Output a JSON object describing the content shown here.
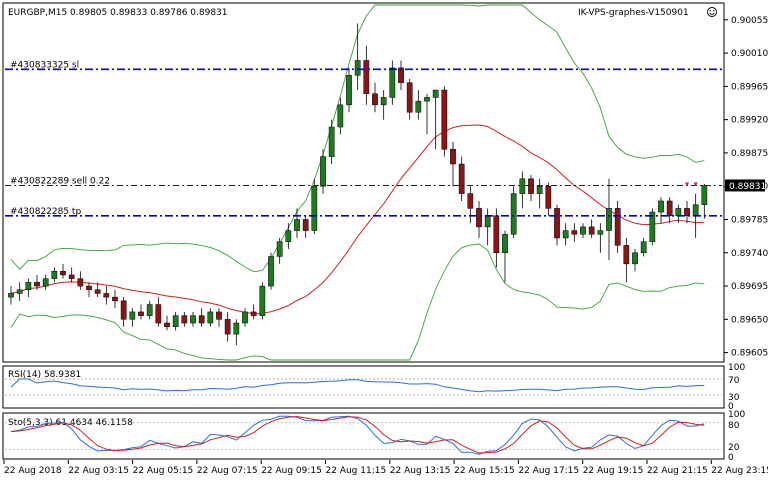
{
  "header": {
    "symbol_title": "EURGBP,M15  0.89805 0.89833 0.89786 0.89831",
    "right_title": "IK-VPS-graphes-V150901",
    "smiley_icon": "smiley-icon"
  },
  "colors": {
    "bull": "#1f7a1f",
    "bear": "#8b1414",
    "ma": "#cc2222",
    "bands": "#3aa03a",
    "blue_line": "#0000cc",
    "rsi": "#2a6fd6",
    "sto_main": "#2a6fd6",
    "sto_signal": "#cc2222"
  },
  "orders": [
    {
      "label": "#430833325 sl",
      "price": 0.89988,
      "style": "blue-dash-dot"
    },
    {
      "label": "#430822289 sell 0.22",
      "price": 0.89831,
      "style": "black-dash-dot"
    },
    {
      "label": "#430822285 tp",
      "price": 0.8979,
      "style": "blue-dash-dot"
    }
  ],
  "price_axis": {
    "ticks": [
      "0.90055",
      "0.90010",
      "0.89965",
      "0.89920",
      "0.89875",
      "0.89830",
      "0.89785",
      "0.89740",
      "0.89695",
      "0.89650",
      "0.89605"
    ],
    "current_price": "0.89831"
  },
  "time_axis": {
    "labels": [
      "22 Aug 2018",
      "22 Aug 03:15",
      "22 Aug 05:15",
      "22 Aug 07:15",
      "22 Aug 09:15",
      "22 Aug 11:15",
      "22 Aug 13:15",
      "22 Aug 15:15",
      "22 Aug 17:15",
      "22 Aug 19:15",
      "22 Aug 21:15",
      "22 Aug 23:15"
    ]
  },
  "rsi_panel": {
    "title": "RSI(14) 58.9381",
    "levels": [
      "100",
      "70",
      "30",
      "0"
    ]
  },
  "sto_panel": {
    "title": "Sto(5,3,3) 61.4634 46.1158",
    "levels": [
      "100",
      "80",
      "20",
      "0"
    ]
  },
  "chart_data": {
    "type": "candlestick",
    "symbol": "EURGBP",
    "timeframe": "M15",
    "last_ohlc": {
      "open": 0.89805,
      "high": 0.89833,
      "low": 0.89786,
      "close": 0.89831
    },
    "candles": [
      [
        0.8968,
        0.89695,
        0.8967,
        0.89685
      ],
      [
        0.89685,
        0.897,
        0.89675,
        0.8969
      ],
      [
        0.8969,
        0.89705,
        0.8968,
        0.897
      ],
      [
        0.897,
        0.8971,
        0.8969,
        0.89695
      ],
      [
        0.89695,
        0.8971,
        0.8969,
        0.89705
      ],
      [
        0.89705,
        0.8972,
        0.897,
        0.89715
      ],
      [
        0.89715,
        0.89725,
        0.89705,
        0.8971
      ],
      [
        0.8971,
        0.8972,
        0.897,
        0.89705
      ],
      [
        0.89705,
        0.89715,
        0.8969,
        0.89695
      ],
      [
        0.89695,
        0.897,
        0.8968,
        0.8969
      ],
      [
        0.8969,
        0.897,
        0.8968,
        0.89685
      ],
      [
        0.89685,
        0.89695,
        0.8967,
        0.8968
      ],
      [
        0.8968,
        0.8969,
        0.89665,
        0.89675
      ],
      [
        0.89675,
        0.8968,
        0.8964,
        0.8965
      ],
      [
        0.8965,
        0.89665,
        0.8964,
        0.8966
      ],
      [
        0.8966,
        0.8967,
        0.8965,
        0.89655
      ],
      [
        0.89655,
        0.89675,
        0.8965,
        0.8967
      ],
      [
        0.8967,
        0.8968,
        0.8964,
        0.89645
      ],
      [
        0.89645,
        0.89655,
        0.89635,
        0.8964
      ],
      [
        0.8964,
        0.8966,
        0.89635,
        0.89655
      ],
      [
        0.89655,
        0.8966,
        0.8964,
        0.89645
      ],
      [
        0.89645,
        0.8966,
        0.8964,
        0.89655
      ],
      [
        0.89655,
        0.89665,
        0.8964,
        0.89645
      ],
      [
        0.89645,
        0.89665,
        0.8964,
        0.8966
      ],
      [
        0.8966,
        0.89665,
        0.8964,
        0.8965
      ],
      [
        0.8965,
        0.8966,
        0.8962,
        0.8963
      ],
      [
        0.8963,
        0.8965,
        0.89615,
        0.89645
      ],
      [
        0.89645,
        0.89665,
        0.8964,
        0.8966
      ],
      [
        0.8966,
        0.8967,
        0.8965,
        0.89655
      ],
      [
        0.89655,
        0.897,
        0.8965,
        0.89695
      ],
      [
        0.89695,
        0.8974,
        0.8969,
        0.89735
      ],
      [
        0.89735,
        0.8976,
        0.89725,
        0.89755
      ],
      [
        0.89755,
        0.8978,
        0.89745,
        0.8977
      ],
      [
        0.8977,
        0.898,
        0.8976,
        0.89785
      ],
      [
        0.89785,
        0.8979,
        0.8976,
        0.8977
      ],
      [
        0.8977,
        0.8984,
        0.89765,
        0.8983
      ],
      [
        0.8983,
        0.8988,
        0.8982,
        0.8987
      ],
      [
        0.8987,
        0.8992,
        0.8986,
        0.8991
      ],
      [
        0.8991,
        0.8995,
        0.899,
        0.8994
      ],
      [
        0.8994,
        0.8999,
        0.8993,
        0.8998
      ],
      [
        0.8998,
        0.9005,
        0.8996,
        0.9
      ],
      [
        0.9,
        0.9002,
        0.8994,
        0.89955
      ],
      [
        0.89955,
        0.8997,
        0.8993,
        0.8994
      ],
      [
        0.8994,
        0.8996,
        0.8992,
        0.8995
      ],
      [
        0.8995,
        0.9,
        0.8994,
        0.8999
      ],
      [
        0.8999,
        0.9,
        0.8996,
        0.8997
      ],
      [
        0.8997,
        0.89975,
        0.8992,
        0.8993
      ],
      [
        0.8993,
        0.8996,
        0.8992,
        0.89945
      ],
      [
        0.89945,
        0.89955,
        0.899,
        0.8995
      ],
      [
        0.8995,
        0.8996,
        0.8988,
        0.8996
      ],
      [
        0.8996,
        0.89965,
        0.8987,
        0.8988
      ],
      [
        0.8988,
        0.8989,
        0.8983,
        0.8986
      ],
      [
        0.8986,
        0.8987,
        0.8981,
        0.8982
      ],
      [
        0.8982,
        0.8983,
        0.8978,
        0.898
      ],
      [
        0.898,
        0.8981,
        0.8976,
        0.89775
      ],
      [
        0.89775,
        0.898,
        0.8975,
        0.8979
      ],
      [
        0.8979,
        0.898,
        0.8972,
        0.8974
      ],
      [
        0.8974,
        0.8977,
        0.897,
        0.89765
      ],
      [
        0.89765,
        0.8983,
        0.8976,
        0.8982
      ],
      [
        0.8982,
        0.8985,
        0.898,
        0.8984
      ],
      [
        0.8984,
        0.89845,
        0.8981,
        0.8982
      ],
      [
        0.8982,
        0.8984,
        0.898,
        0.8983
      ],
      [
        0.8983,
        0.89835,
        0.8979,
        0.898
      ],
      [
        0.898,
        0.89805,
        0.8975,
        0.8976
      ],
      [
        0.8976,
        0.8978,
        0.8975,
        0.8977
      ],
      [
        0.8977,
        0.8978,
        0.89755,
        0.89765
      ],
      [
        0.89765,
        0.8978,
        0.8976,
        0.89775
      ],
      [
        0.89775,
        0.89785,
        0.8976,
        0.89765
      ],
      [
        0.89765,
        0.8978,
        0.8974,
        0.8977
      ],
      [
        0.8977,
        0.8984,
        0.8973,
        0.898
      ],
      [
        0.898,
        0.8981,
        0.8974,
        0.8975
      ],
      [
        0.8975,
        0.8976,
        0.897,
        0.89725
      ],
      [
        0.89725,
        0.89745,
        0.89715,
        0.8974
      ],
      [
        0.8974,
        0.8976,
        0.89735,
        0.89755
      ],
      [
        0.89755,
        0.898,
        0.8975,
        0.89795
      ],
      [
        0.89795,
        0.89815,
        0.8978,
        0.8981
      ],
      [
        0.8981,
        0.89815,
        0.8978,
        0.8979
      ],
      [
        0.8979,
        0.89805,
        0.8978,
        0.898
      ],
      [
        0.898,
        0.8981,
        0.8978,
        0.8979
      ],
      [
        0.8979,
        0.8982,
        0.8976,
        0.89805
      ],
      [
        0.89805,
        0.89833,
        0.89786,
        0.89831
      ]
    ]
  }
}
